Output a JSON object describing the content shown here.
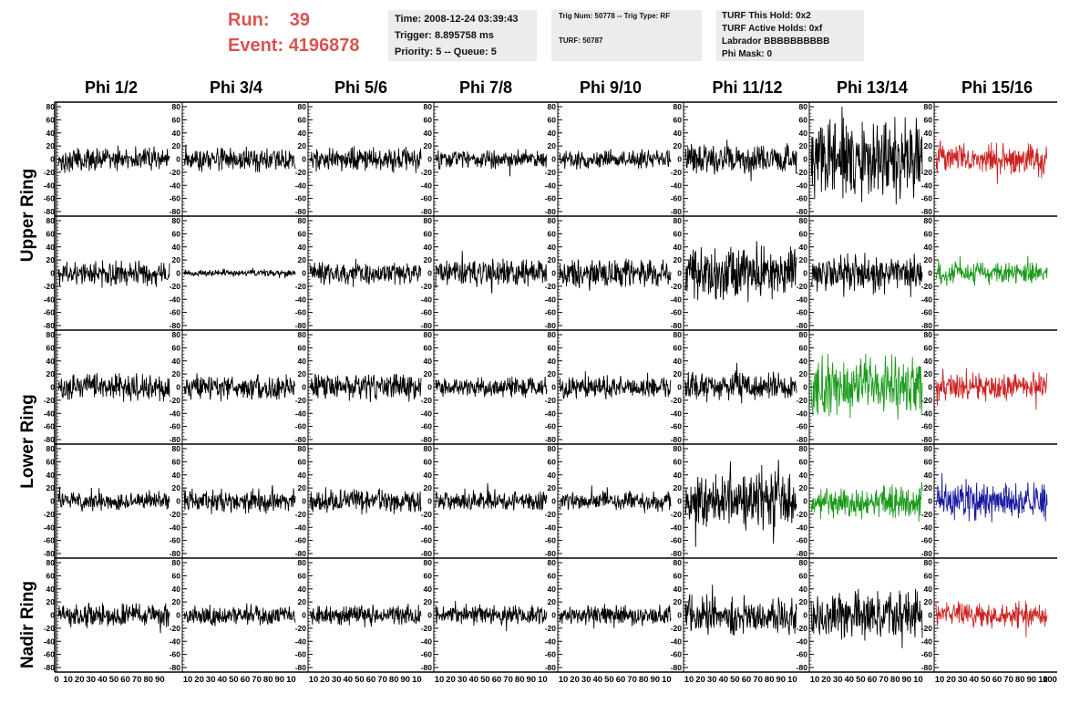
{
  "header": {
    "run_label": "Run:",
    "run_value": "39",
    "event_label": "Event:",
    "event_value": "4196878",
    "time_line": "Time: 2008-12-24 03:39:43",
    "trigger_line": "Trigger: 8.895758 ms",
    "priority_line": "Priority: 5 -- Queue: 5",
    "trig_line": "Trig Num: 50778 -- Trig Type: RF",
    "turf_line": "TURF: 50787",
    "turf_hold": "TURF This Hold: 0x2",
    "turf_active": "TURF Active Holds: 0xf",
    "labrador": "Labrador BBBBBBBBBB",
    "phi_mask": "Phi Mask: 0"
  },
  "columns": [
    "Phi 1/2",
    "Phi 3/4",
    "Phi 5/6",
    "Phi 7/8",
    "Phi 9/10",
    "Phi 11/12",
    "Phi 13/14",
    "Phi 15/16"
  ],
  "ring_labels": [
    "Upper Ring",
    "Lower Ring",
    "Nadir Ring"
  ],
  "colors": {
    "black": "#000000",
    "red": "#cc2222",
    "green": "#1a9a1a",
    "blue": "#1a1aa0",
    "header_red": "#d9534f"
  },
  "chart_data": {
    "type": "line",
    "title": "",
    "xlabel": "",
    "ylabel": "",
    "xlim": [
      0,
      100
    ],
    "ylim": [
      -80,
      80
    ],
    "ytick_labels": [
      "80",
      "60",
      "40",
      "20",
      "0",
      "-20",
      "-40",
      "-60",
      "-80"
    ],
    "xtick_labels": [
      "0",
      "10",
      "20",
      "30",
      "40",
      "50",
      "60",
      "70",
      "80",
      "90",
      "100"
    ],
    "xtick_labels_compressed": [
      "10",
      "20",
      "30",
      "40",
      "50",
      "60",
      "70",
      "80",
      "90",
      "10"
    ],
    "samples_per_trace": 260,
    "panels": [
      {
        "row": 0,
        "col": 0,
        "color": "black",
        "amplitude": 14
      },
      {
        "row": 0,
        "col": 1,
        "color": "black",
        "amplitude": 14
      },
      {
        "row": 0,
        "col": 2,
        "color": "black",
        "amplitude": 15
      },
      {
        "row": 0,
        "col": 3,
        "color": "black",
        "amplitude": 11
      },
      {
        "row": 0,
        "col": 4,
        "color": "black",
        "amplitude": 11
      },
      {
        "row": 0,
        "col": 5,
        "color": "black",
        "amplitude": 18
      },
      {
        "row": 0,
        "col": 6,
        "color": "black",
        "amplitude": 45
      },
      {
        "row": 0,
        "col": 7,
        "color": "red",
        "amplitude": 18
      },
      {
        "row": 1,
        "col": 0,
        "color": "black",
        "amplitude": 15
      },
      {
        "row": 1,
        "col": 1,
        "color": "black",
        "amplitude": 4
      },
      {
        "row": 1,
        "col": 2,
        "color": "black",
        "amplitude": 15
      },
      {
        "row": 1,
        "col": 3,
        "color": "black",
        "amplitude": 16
      },
      {
        "row": 1,
        "col": 4,
        "color": "black",
        "amplitude": 17
      },
      {
        "row": 1,
        "col": 5,
        "color": "black",
        "amplitude": 30
      },
      {
        "row": 1,
        "col": 6,
        "color": "black",
        "amplitude": 22
      },
      {
        "row": 1,
        "col": 7,
        "color": "green",
        "amplitude": 14
      },
      {
        "row": 2,
        "col": 0,
        "color": "black",
        "amplitude": 16
      },
      {
        "row": 2,
        "col": 1,
        "color": "black",
        "amplitude": 16
      },
      {
        "row": 2,
        "col": 2,
        "color": "black",
        "amplitude": 16
      },
      {
        "row": 2,
        "col": 3,
        "color": "black",
        "amplitude": 12
      },
      {
        "row": 2,
        "col": 4,
        "color": "black",
        "amplitude": 13
      },
      {
        "row": 2,
        "col": 5,
        "color": "black",
        "amplitude": 18
      },
      {
        "row": 2,
        "col": 6,
        "color": "green",
        "amplitude": 35
      },
      {
        "row": 2,
        "col": 7,
        "color": "red",
        "amplitude": 16
      },
      {
        "row": 3,
        "col": 0,
        "color": "black",
        "amplitude": 11
      },
      {
        "row": 3,
        "col": 1,
        "color": "black",
        "amplitude": 14
      },
      {
        "row": 3,
        "col": 2,
        "color": "black",
        "amplitude": 14
      },
      {
        "row": 3,
        "col": 3,
        "color": "black",
        "amplitude": 12
      },
      {
        "row": 3,
        "col": 4,
        "color": "black",
        "amplitude": 12
      },
      {
        "row": 3,
        "col": 5,
        "color": "black",
        "amplitude": 32
      },
      {
        "row": 3,
        "col": 6,
        "color": "green",
        "amplitude": 20
      },
      {
        "row": 3,
        "col": 7,
        "color": "blue",
        "amplitude": 22
      },
      {
        "row": 4,
        "col": 0,
        "color": "black",
        "amplitude": 14
      },
      {
        "row": 4,
        "col": 1,
        "color": "black",
        "amplitude": 12
      },
      {
        "row": 4,
        "col": 2,
        "color": "black",
        "amplitude": 12
      },
      {
        "row": 4,
        "col": 3,
        "color": "black",
        "amplitude": 12
      },
      {
        "row": 4,
        "col": 4,
        "color": "black",
        "amplitude": 12
      },
      {
        "row": 4,
        "col": 5,
        "color": "black",
        "amplitude": 22
      },
      {
        "row": 4,
        "col": 6,
        "color": "black",
        "amplitude": 28
      },
      {
        "row": 4,
        "col": 7,
        "color": "red",
        "amplitude": 15
      }
    ]
  }
}
